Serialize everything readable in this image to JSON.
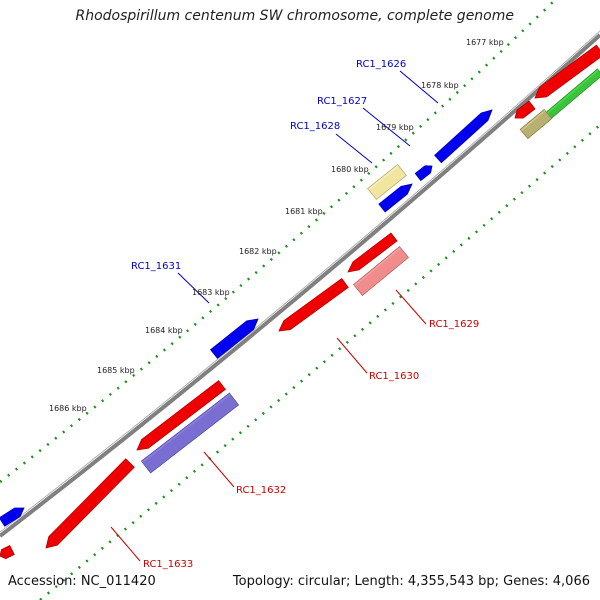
{
  "title": "Rhodospirillum centenum SW chromosome, complete genome",
  "footer": {
    "accession": "Accession: NC_011420",
    "summary": "Topology: circular; Length: 4,355,543 bp; Genes: 4,066"
  },
  "colors": {
    "backbone": "#7a7a7a",
    "tick_dot": "#1f8f1f",
    "forward": "#0000ee",
    "reverse": "#ee0000",
    "forward_label": "#0000cc",
    "reverse_label": "#cc0000"
  },
  "kbp_labels": [
    "1677 kbp",
    "1678 kbp",
    "1679 kbp",
    "1680 kbp",
    "1681 kbp",
    "1682 kbp",
    "1683 kbp",
    "1684 kbp",
    "1685 kbp",
    "1686 kbp"
  ],
  "genes": [
    {
      "id": "RC1_1626",
      "label": "RC1_1626",
      "strand": "forward",
      "color": "#0000ee"
    },
    {
      "id": "RC1_1627",
      "label": "RC1_1627",
      "strand": "forward",
      "color": "#0000ee"
    },
    {
      "id": "RC1_1628",
      "label": "RC1_1628",
      "strand": "forward",
      "color": "#0000ee"
    },
    {
      "id": "RC1_1629",
      "label": "RC1_1629",
      "strand": "reverse",
      "color": "#ee0000"
    },
    {
      "id": "RC1_1630",
      "label": "RC1_1630",
      "strand": "reverse",
      "color": "#ee0000"
    },
    {
      "id": "RC1_1631",
      "label": "RC1_1631",
      "strand": "forward",
      "color": "#0000ee"
    },
    {
      "id": "RC1_1632",
      "label": "RC1_1632",
      "strand": "reverse",
      "color": "#ee0000"
    },
    {
      "id": "RC1_1633",
      "label": "RC1_1633",
      "strand": "reverse",
      "color": "#ee0000"
    }
  ],
  "features": [
    {
      "id": "f-1626",
      "color": "#0000ee",
      "kind": "gene-forward"
    },
    {
      "id": "f-1627",
      "color": "#0000ee",
      "kind": "gene-forward"
    },
    {
      "id": "f-1628",
      "color": "#0000ee",
      "kind": "gene-forward"
    },
    {
      "id": "f-1628-cds",
      "color": "#f0e6a0",
      "kind": "cds"
    },
    {
      "id": "f-1629",
      "color": "#ee0000",
      "kind": "gene-reverse"
    },
    {
      "id": "f-1629-cds",
      "color": "#f08c8c",
      "kind": "cds"
    },
    {
      "id": "f-1630",
      "color": "#ee0000",
      "kind": "gene-reverse"
    },
    {
      "id": "f-1631",
      "color": "#0000ee",
      "kind": "gene-forward"
    },
    {
      "id": "f-1632",
      "color": "#ee0000",
      "kind": "gene-reverse"
    },
    {
      "id": "f-1632-cds",
      "color": "#7a6ed2",
      "kind": "cds"
    },
    {
      "id": "f-1633",
      "color": "#ee0000",
      "kind": "gene-reverse"
    },
    {
      "id": "f-top-red-1",
      "color": "#ee0000",
      "kind": "gene-reverse"
    },
    {
      "id": "f-top-red-2",
      "color": "#ee0000",
      "kind": "gene-reverse"
    },
    {
      "id": "f-top-green",
      "color": "#3cc33c",
      "kind": "cds"
    },
    {
      "id": "f-top-olive",
      "color": "#b8b070",
      "kind": "cds"
    },
    {
      "id": "f-left-blue",
      "color": "#0000ee",
      "kind": "gene-forward"
    },
    {
      "id": "f-left-red",
      "color": "#ee0000",
      "kind": "gene-reverse"
    }
  ]
}
